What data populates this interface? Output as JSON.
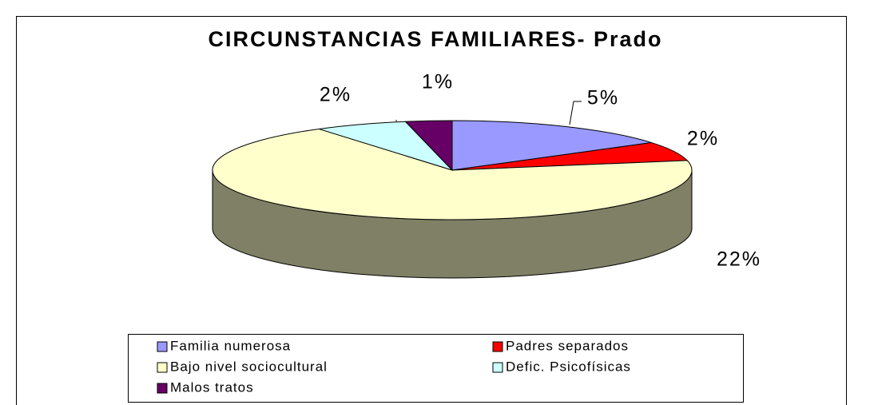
{
  "chart_data": {
    "type": "pie3d",
    "title": "CIRCUNSTANCIAS FAMILIARES- Prado",
    "categories": [
      "Familia numerosa",
      "Padres separados",
      "Bajo nivel sociocultural",
      "Defic. Psicofísicas",
      "Malos tratos"
    ],
    "values": [
      5,
      2,
      22,
      2,
      1
    ],
    "value_labels": [
      "5%",
      "2%",
      "22%",
      "2%",
      "1%"
    ],
    "colors": [
      "#9999ff",
      "#ff0000",
      "#ffffcc",
      "#ccffff",
      "#660066"
    ],
    "legend": "bottom"
  }
}
